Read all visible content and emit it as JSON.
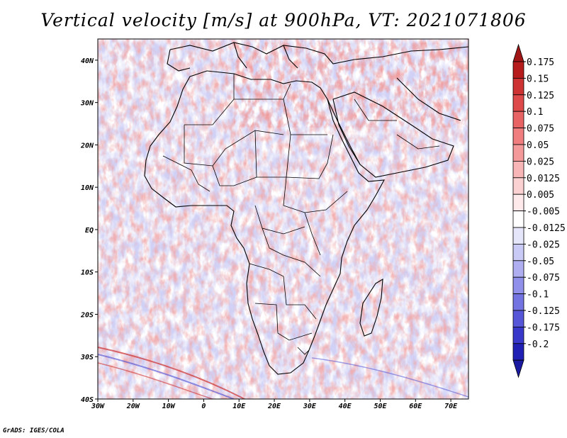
{
  "title": "Vertical velocity [m/s] at 900hPa, VT: 2021071806",
  "credit": "GrADS: IGES/COLA",
  "map": {
    "lon_range": [
      -30,
      75
    ],
    "lat_range": [
      -40,
      45
    ],
    "x_ticks": [
      {
        "lon": -30,
        "label": "30W"
      },
      {
        "lon": -20,
        "label": "20W"
      },
      {
        "lon": -10,
        "label": "10W"
      },
      {
        "lon": 0,
        "label": "0"
      },
      {
        "lon": 10,
        "label": "10E"
      },
      {
        "lon": 20,
        "label": "20E"
      },
      {
        "lon": 30,
        "label": "30E"
      },
      {
        "lon": 40,
        "label": "40E"
      },
      {
        "lon": 50,
        "label": "50E"
      },
      {
        "lon": 60,
        "label": "60E"
      },
      {
        "lon": 70,
        "label": "70E"
      }
    ],
    "y_ticks": [
      {
        "lat": 40,
        "label": "40N"
      },
      {
        "lat": 30,
        "label": "30N"
      },
      {
        "lat": 20,
        "label": "20N"
      },
      {
        "lat": 10,
        "label": "10N"
      },
      {
        "lat": 0,
        "label": "EQ"
      },
      {
        "lat": -10,
        "label": "10S"
      },
      {
        "lat": -20,
        "label": "20S"
      },
      {
        "lat": -30,
        "label": "30S"
      },
      {
        "lat": -40,
        "label": "40S"
      }
    ],
    "coastline_color": "#000000"
  },
  "colorbar": {
    "levels": [
      {
        "label": "0.175",
        "color": "#b71c1c"
      },
      {
        "label": "0.15",
        "color": "#cd3333"
      },
      {
        "label": "0.125",
        "color": "#de4a4a"
      },
      {
        "label": "0.1",
        "color": "#e86363"
      },
      {
        "label": "0.075",
        "color": "#f07e7e"
      },
      {
        "label": "0.05",
        "color": "#f59a9a"
      },
      {
        "label": "0.025",
        "color": "#f9b6b6"
      },
      {
        "label": "0.0125",
        "color": "#fcd1d1"
      },
      {
        "label": "0.005",
        "color": "#feeaea"
      },
      {
        "label": "-0.005",
        "color": "#ffffff"
      },
      {
        "label": "-0.0125",
        "color": "#e6e6fb"
      },
      {
        "label": "-0.025",
        "color": "#cacaf6"
      },
      {
        "label": "-0.05",
        "color": "#aeaef1"
      },
      {
        "label": "-0.075",
        "color": "#9090ea"
      },
      {
        "label": "-0.1",
        "color": "#7373e2"
      },
      {
        "label": "-0.125",
        "color": "#5656d8"
      },
      {
        "label": "-0.175",
        "color": "#3838ca"
      },
      {
        "label": "-0.2",
        "color": "#2020b5"
      }
    ],
    "top_color": "#a01515",
    "bottom_color": "#1a1aa0"
  }
}
